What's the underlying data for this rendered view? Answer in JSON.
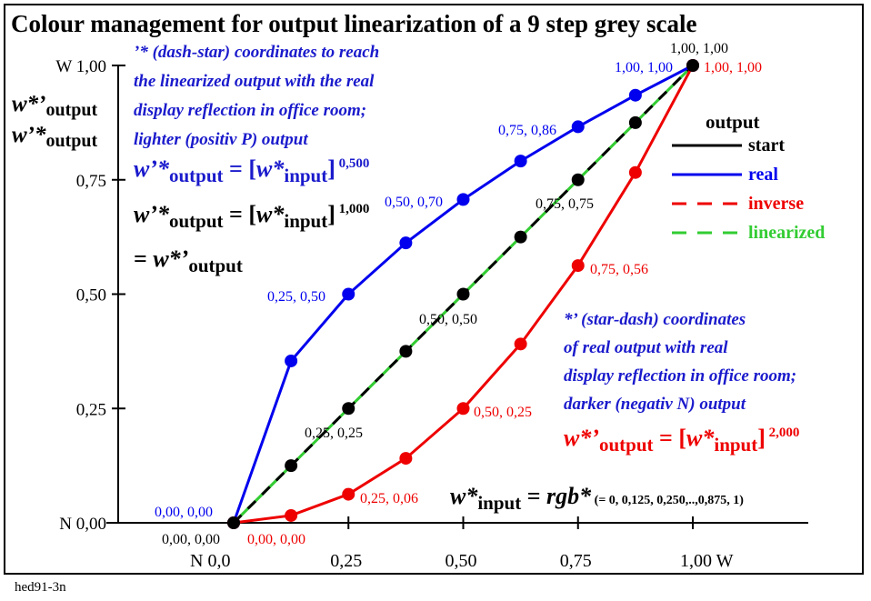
{
  "chart_data": {
    "type": "line",
    "title": "Colour management for output linearization of a 9 step grey scale",
    "x": [
      0,
      0.125,
      0.25,
      0.375,
      0.5,
      0.625,
      0.75,
      0.875,
      1.0
    ],
    "xlim": [
      0,
      1
    ],
    "ylim": [
      0,
      1
    ],
    "x_ticks": [
      {
        "value": 0,
        "label": "N  0,0"
      },
      {
        "value": 0.25,
        "label": "0,25"
      },
      {
        "value": 0.5,
        "label": "0,50"
      },
      {
        "value": 0.75,
        "label": "0,75"
      },
      {
        "value": 1.0,
        "label": "1,00  W"
      }
    ],
    "y_ticks": [
      {
        "value": 0,
        "label": "N 0,00"
      },
      {
        "value": 0.25,
        "label": "0,25"
      },
      {
        "value": 0.5,
        "label": "0,50"
      },
      {
        "value": 0.75,
        "label": "0,75"
      },
      {
        "value": 1.0,
        "label": "W 1,00"
      }
    ],
    "ylabel_lines": [
      "w*’",
      "output",
      "w’*",
      "output"
    ],
    "series": [
      {
        "name": "start",
        "color": "#000000",
        "style": "solid",
        "values": [
          0,
          0.125,
          0.25,
          0.375,
          0.5,
          0.625,
          0.75,
          0.875,
          1.0
        ]
      },
      {
        "name": "real",
        "color": "#0000ee",
        "style": "solid",
        "values": [
          0,
          0.354,
          0.5,
          0.612,
          0.707,
          0.791,
          0.866,
          0.935,
          1.0
        ]
      },
      {
        "name": "inverse",
        "color": "#ee0000",
        "style": "dashed",
        "values": [
          0,
          0.016,
          0.0625,
          0.141,
          0.25,
          0.391,
          0.5625,
          0.766,
          1.0
        ]
      },
      {
        "name": "linearized",
        "color": "#33cc33",
        "style": "dashed",
        "values": [
          0,
          0.125,
          0.25,
          0.375,
          0.5,
          0.625,
          0.75,
          0.875,
          1.0
        ]
      }
    ],
    "legend_title": "output",
    "legend_position": "right",
    "point_labels": [
      {
        "text": "1,00, 1,00",
        "color": "#000000"
      },
      {
        "text": "1,00, 1,00",
        "color": "#0000ee"
      },
      {
        "text": "1,00, 1,00",
        "color": "#ee0000"
      },
      {
        "text": "0,75, 0,86",
        "color": "#0000ee"
      },
      {
        "text": "0,50, 0,70",
        "color": "#0000ee"
      },
      {
        "text": "0,75, 0,75",
        "color": "#000000"
      },
      {
        "text": "0,25, 0,50",
        "color": "#0000ee"
      },
      {
        "text": "0,50, 0,50",
        "color": "#000000"
      },
      {
        "text": "0,75, 0,56",
        "color": "#ee0000"
      },
      {
        "text": "0,50, 0,25",
        "color": "#ee0000"
      },
      {
        "text": "0,25, 0,25",
        "color": "#000000"
      },
      {
        "text": "0,25, 0,06",
        "color": "#ee0000"
      },
      {
        "text": "0,00, 0,00",
        "color": "#0000ee"
      },
      {
        "text": "0,00, 0,00",
        "color": "#000000"
      },
      {
        "text": "0,00, 0,00",
        "color": "#ee0000"
      }
    ],
    "annotations": {
      "blue_lines": [
        "’* (dash-star) coordinates to reach",
        "the linearized output with the real",
        "display reflection in office room;",
        "lighter (positiv P) output"
      ],
      "blue_formula": {
        "left": "w’*",
        "sub1": "output",
        "mid": " = [",
        "var": "w*",
        "sub2": "input",
        "close": "]",
        "exp": "0,500"
      },
      "black_formula": {
        "left": "w’*",
        "sub1": "output",
        "mid": " = [",
        "var": "w*",
        "sub2": "input",
        "close": "]",
        "exp": "1,000"
      },
      "black_equal": {
        "eq": "= ",
        "var": "w*’",
        "sub": "output"
      },
      "red_lines": [
        "*’ (star-dash) coordinates",
        "of real output with real",
        "display reflection in office room;",
        "darker (negativ N) output"
      ],
      "red_formula": {
        "left": "w*’",
        "sub1": "output",
        "mid": " = [",
        "var": "w*",
        "sub2": "input",
        "close": "]",
        "exp": "2,000"
      },
      "input_formula": {
        "var": "w*",
        "sub": "input",
        "eq": " = ",
        "rgb": "rgb*",
        "tail": " (= 0, 0,125, 0,250,..,0,875, 1)"
      }
    }
  },
  "footer": "hed91-3n"
}
